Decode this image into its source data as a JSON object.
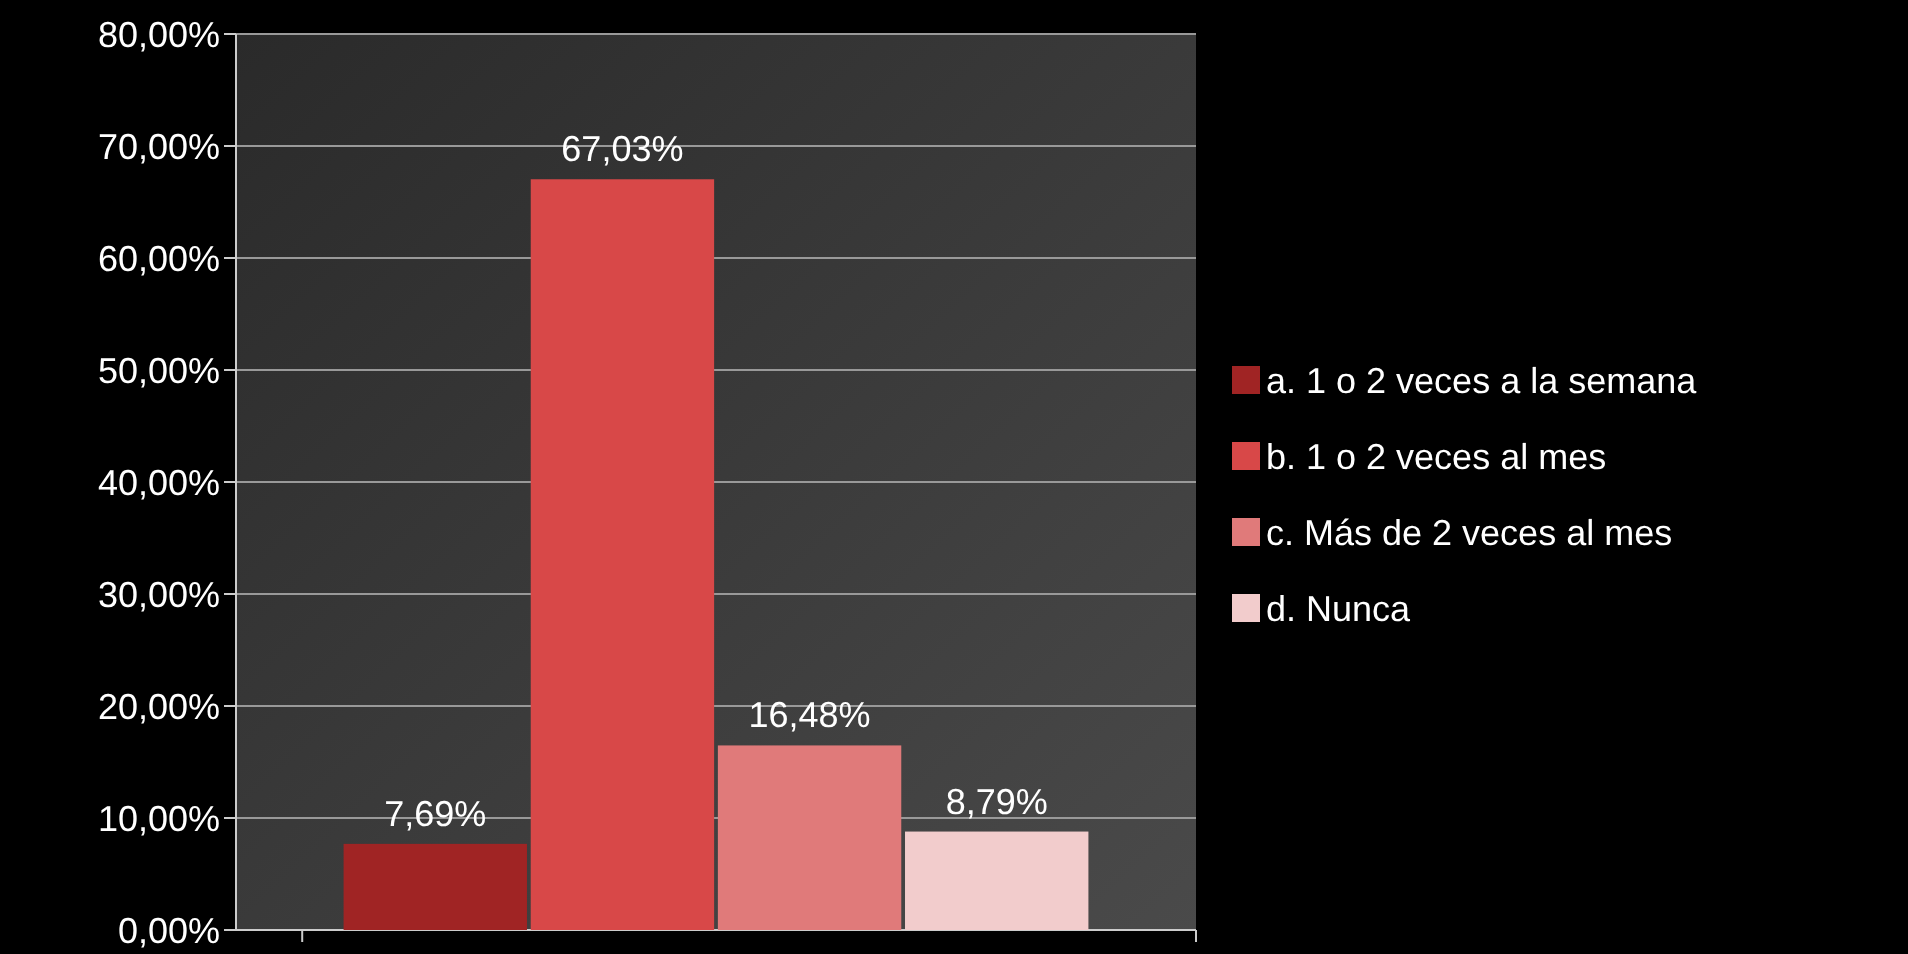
{
  "chart_data": {
    "type": "bar",
    "categories": [
      null
    ],
    "series": [
      {
        "name": "a. 1 o 2 veces a la semana",
        "color": "#a02424",
        "values": [
          7.69
        ]
      },
      {
        "name": "b. 1 o 2 veces al mes",
        "color": "#d84848",
        "values": [
          67.03
        ]
      },
      {
        "name": "c. Más de 2 veces al mes",
        "color": "#e07a7a",
        "values": [
          16.48
        ]
      },
      {
        "name": "d. Nunca",
        "color": "#f2cccc",
        "values": [
          8.79
        ]
      }
    ],
    "value_labels": [
      "7,69%",
      "67,03%",
      "16,48%",
      "8,79%"
    ],
    "ylim": [
      0,
      80
    ],
    "yticks": [
      {
        "value": 0,
        "label": "0,00%"
      },
      {
        "value": 10,
        "label": "10,00%"
      },
      {
        "value": 20,
        "label": "20,00%"
      },
      {
        "value": 30,
        "label": "30,00%"
      },
      {
        "value": 40,
        "label": "40,00%"
      },
      {
        "value": 50,
        "label": "50,00%"
      },
      {
        "value": 60,
        "label": "60,00%"
      },
      {
        "value": 70,
        "label": "70,00%"
      },
      {
        "value": 80,
        "label": "80,00%"
      }
    ],
    "grid": "y",
    "legend": "right"
  }
}
